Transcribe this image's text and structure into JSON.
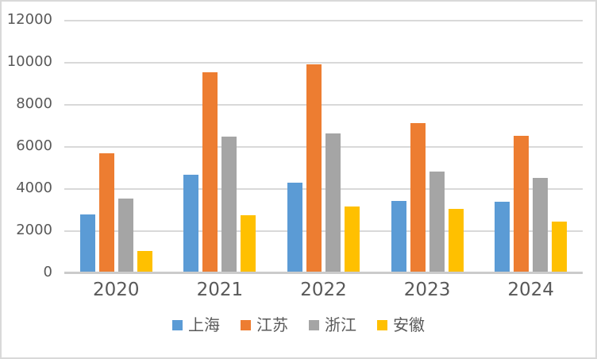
{
  "chart_data": {
    "type": "bar",
    "title": "",
    "xlabel": "",
    "ylabel": "",
    "categories": [
      "2020",
      "2021",
      "2022",
      "2023",
      "2024"
    ],
    "series": [
      {
        "name": "上海",
        "color": "#5B9BD5",
        "values": [
          2750,
          4650,
          4250,
          3400,
          3350
        ]
      },
      {
        "name": "江苏",
        "color": "#ED7D31",
        "values": [
          5650,
          9500,
          9900,
          7100,
          6500
        ]
      },
      {
        "name": "浙江",
        "color": "#A5A5A5",
        "values": [
          3500,
          6450,
          6600,
          4800,
          4500
        ]
      },
      {
        "name": "安徽",
        "color": "#FFC000",
        "values": [
          1000,
          2700,
          3150,
          3000,
          2400
        ]
      }
    ],
    "ylim": [
      0,
      12000
    ],
    "yticks": [
      0,
      2000,
      4000,
      6000,
      8000,
      10000,
      12000
    ],
    "grid": true,
    "legend_position": "bottom",
    "colors": {
      "gridline": "#D9D9D9",
      "axis_line": "#CBCBCB",
      "axis_text": "#595959",
      "border": "#D9D9D9",
      "background": "#FFFFFF"
    }
  }
}
